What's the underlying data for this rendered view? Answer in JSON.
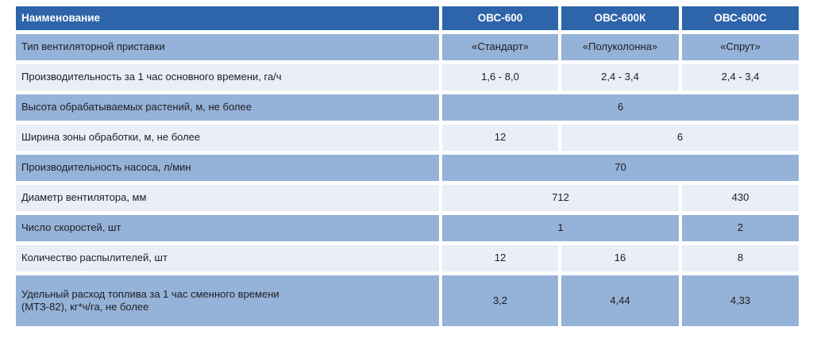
{
  "table": {
    "colors": {
      "header_bg": "#2d64aa",
      "header_text": "#ffffff",
      "row_medium": "#95b2d8",
      "row_light": "#e9eef7",
      "text": "#1e1e22"
    },
    "header": {
      "name_col": "Наименование",
      "columns": [
        "ОВС-600",
        "ОВС-600К",
        "ОВС-600С"
      ]
    },
    "rows": [
      {
        "label": "Тип вентиляторной приставки",
        "shade": "medium",
        "cells": [
          {
            "text": "«Стандарт»",
            "span": 1
          },
          {
            "text": "«Полуколонна»",
            "span": 1
          },
          {
            "text": "«Спрут»",
            "span": 1
          }
        ]
      },
      {
        "label": "Производительность за 1 час основного времени, га/ч",
        "shade": "light",
        "cells": [
          {
            "text": "1,6 - 8,0",
            "span": 1
          },
          {
            "text": "2,4 - 3,4",
            "span": 1
          },
          {
            "text": "2,4 - 3,4",
            "span": 1
          }
        ]
      },
      {
        "label": "Высота обрабатываемых растений, м, не более",
        "shade": "medium",
        "cells": [
          {
            "text": "6",
            "span": 3
          }
        ]
      },
      {
        "label": "Ширина зоны обработки, м, не более",
        "shade": "light",
        "cells": [
          {
            "text": "12",
            "span": 1
          },
          {
            "text": "6",
            "span": 2
          }
        ]
      },
      {
        "label": "Производительность насоса, л/мин",
        "shade": "medium",
        "cells": [
          {
            "text": "70",
            "span": 3
          }
        ]
      },
      {
        "label": "Диаметр вентилятора, мм",
        "shade": "light",
        "cells": [
          {
            "text": "712",
            "span": 2
          },
          {
            "text": "430",
            "span": 1
          }
        ]
      },
      {
        "label": "Число скоростей, шт",
        "shade": "medium",
        "cells": [
          {
            "text": "1",
            "span": 2
          },
          {
            "text": "2",
            "span": 1
          }
        ]
      },
      {
        "label": "Количество распылителей, шт",
        "shade": "light",
        "cells": [
          {
            "text": "12",
            "span": 1
          },
          {
            "text": "16",
            "span": 1
          },
          {
            "text": "8",
            "span": 1
          }
        ]
      },
      {
        "label": "Удельный расход топлива за 1 час сменного времени\n(МТЗ-82), кг*ч/га, не более",
        "shade": "medium",
        "tall": true,
        "cells": [
          {
            "text": "3,2",
            "span": 1
          },
          {
            "text": "4,44",
            "span": 1
          },
          {
            "text": "4,33",
            "span": 1
          }
        ]
      }
    ]
  }
}
